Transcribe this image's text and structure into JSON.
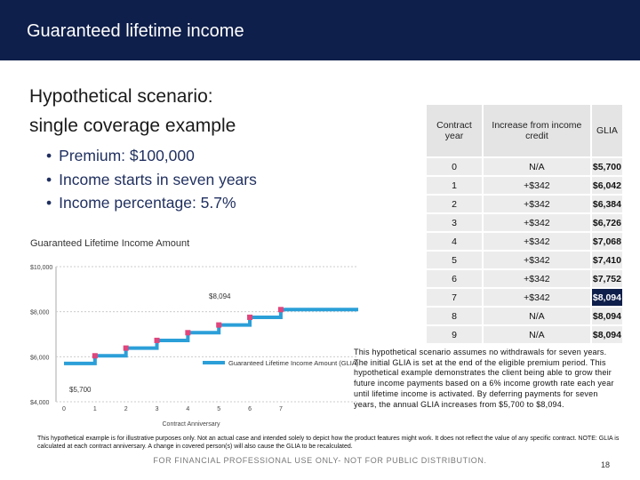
{
  "header": {
    "title": "Guaranteed lifetime income"
  },
  "scenario": {
    "title_lines": [
      "Hypothetical scenario:",
      "single coverage example"
    ],
    "bullets": [
      "Premium: $100,000",
      "Income starts in seven years",
      "Income percentage: 5.7%"
    ]
  },
  "chart_data": {
    "type": "step-line",
    "title": "Guaranteed Lifetime Income Amount",
    "x_label": "Contract Anniversary",
    "x": [
      0,
      1,
      2,
      3,
      4,
      5,
      6,
      7,
      8,
      9
    ],
    "xlim": [
      0,
      9.5
    ],
    "xticks": [
      0,
      1,
      2,
      3,
      4,
      5,
      6,
      7
    ],
    "ylim": [
      4000,
      10000
    ],
    "yticks": [
      {
        "value": 4000,
        "label": "$4,000"
      },
      {
        "value": 6000,
        "label": "$6,000"
      },
      {
        "value": 8000,
        "label": "$8,000"
      },
      {
        "value": 10000,
        "label": "$10,000"
      }
    ],
    "grid": true,
    "series": [
      {
        "name": "Guaranteed Lifetime Income Amount (GLIA)",
        "color": "#2b9fd8",
        "marker_color": "#e0457b",
        "values": [
          5700,
          6042,
          6384,
          6726,
          7068,
          7410,
          7752,
          8094,
          8094,
          8094
        ]
      }
    ],
    "annotations": [
      "$5,700",
      "$8,094"
    ]
  },
  "table": {
    "header": [
      "Contract year",
      "Increase from income credit",
      "GLIA"
    ],
    "rows": [
      [
        "0",
        "N/A",
        "$5,700"
      ],
      [
        "1",
        "+$342",
        "$6,042"
      ],
      [
        "2",
        "+$342",
        "$6,384"
      ],
      [
        "3",
        "+$342",
        "$6,726"
      ],
      [
        "4",
        "+$342",
        "$7,068"
      ],
      [
        "5",
        "+$342",
        "$7,410"
      ],
      [
        "6",
        "+$342",
        "$7,752"
      ],
      [
        "7",
        "+$342",
        "$8,094"
      ],
      [
        "8",
        "N/A",
        "$8,094"
      ],
      [
        "9",
        "N/A",
        "$8,094"
      ]
    ]
  },
  "paragraph": "This hypothetical scenario assumes no withdrawals for seven years. The initial GLIA is set at the end of the eligible premium period. This hypothetical example demonstrates the client being able to grow their future income payments based on a 6% income growth rate each year until lifetime income is activated. By deferring payments for seven years, the annual GLIA increases from $5,700 to $8,094.",
  "footnote": "This hypothetical example is for illustrative purposes only. Not an actual case and intended solely to depict how the product features might work. It does not reflect the value of any specific contract. NOTE: GLIA is calculated at each contract anniversary. A change in covered person(s) will also cause the GLIA to be recalculated.",
  "footer": "FOR FINANCIAL PROFESSIONAL USE ONLY- NOT FOR PUBLIC DISTRIBUTION.",
  "page_number": "18"
}
